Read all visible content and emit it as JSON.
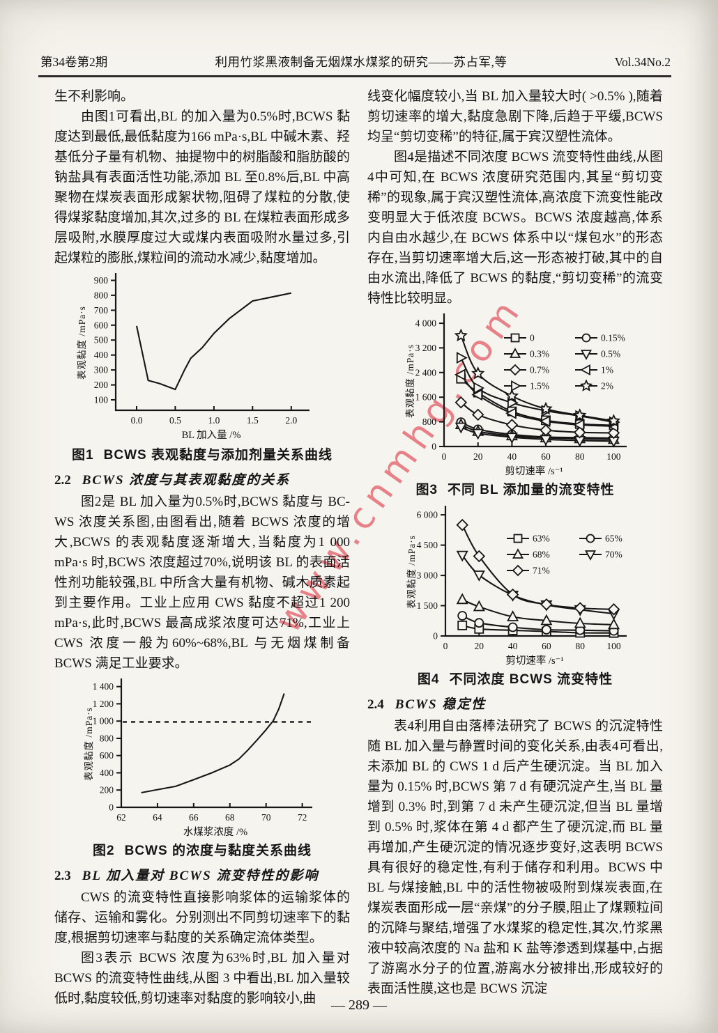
{
  "header": {
    "issue": "第34卷第2期",
    "title": "利用竹浆黑液制备无烟煤水煤浆的研究——苏占军,等",
    "volume": "Vol.34No.2"
  },
  "watermark": {
    "text": "www.cnmhg.com",
    "color": "#e4545f"
  },
  "footer": {
    "page_number": "— 289 —"
  },
  "left_column": {
    "para_continuation": "生不利影响。",
    "para_fig1": "由图1可看出,BL 的加入量为0.5%时,BCWS 黏度达到最低,最低黏度为166 mPa·s,BL 中碱木素、羟基低分子量有机物、抽提物中的树脂酸和脂肪酸的钠盐具有表面活性功能,添加 BL 至0.8%后,BL 中高聚物在煤炭表面形成絮状物,阻碍了煤粒的分散,使得煤浆黏度增加,其次,过多的 BL 在煤粒表面形成多层吸附,水膜厚度过大或煤内表面吸附水量过多,引起煤粒的膨胀,煤粒间的流动水减少,黏度增加。",
    "section_2_2": {
      "num": "2.2",
      "title": "BCWS 浓度与其表观黏度的关系",
      "para": "图2是 BL 加入量为0.5%时,BCWS 黏度与 BC-WS 浓度关系图,由图看出,随着 BCWS 浓度的增大,BCWS 的表观黏度逐渐增大,当黏度为1 000 mPa·s 时,BCWS 浓度超过70%,说明该 BL 的表面活性剂功能较强,BL 中所含大量有机物、碱木质素起到主要作用。工业上应用 CWS 黏度不超过1 200 mPa·s,此时,BCWS 最高成浆浓度可达71%,工业上 CWS 浓度一般为60%~68%,BL 与无烟煤制备 BCWS 满足工业要求。"
    },
    "section_2_3": {
      "num": "2.3",
      "title": "BL 加入量对 BCWS 流变特性的影响",
      "para1": "CWS 的流变特性直接影响浆体的运输浆体的储存、运输和雾化。分别测出不同剪切速率下的黏度,根据剪切速率与黏度的关系确定流体类型。",
      "para2": "图3表示 BCWS 浓度为63%时,BL 加入量对 BCWS 的流变特性曲线,从图 3 中看出,BL 加入量较低时,黏度较低,剪切速率对黏度的影响较小,曲"
    }
  },
  "right_column": {
    "para_continuation": "线变化幅度较小,当 BL 加入量较大时( >0.5% ),随着剪切速率的增大,黏度急剧下降,后趋于平缓,BCWS 均呈“剪切变稀”的特征,属于宾汉塑性流体。",
    "para_fig4": "图4是描述不同浓度 BCWS 流变特性曲线,从图4中可知,在 BCWS 浓度研究范围内,其呈“剪切变稀”的现象,属于宾汉塑性流体,高浓度下流变性能改变明显大于低浓度 BCWS。BCWS 浓度越高,体系内自由水越少,在 BCWS 体系中以“煤包水”的形态存在,当剪切速率增大后,这一形态被打破,其中的自由水流出,降低了 BCWS 的黏度,“剪切变稀”的流变特性比较明显。",
    "section_2_4": {
      "num": "2.4",
      "title": "BCWS 稳定性",
      "para": "表4利用自由落棒法研究了 BCWS 的沉淀特性随 BL 加入量与静置时间的变化关系,由表4可看出,未添加 BL 的 CWS 1 d 后产生硬沉淀。当 BL 加入量为 0.15% 时,BCWS 第 7 d 有硬沉淀产生,当 BL 量增到 0.3% 时,到第 7 d 未产生硬沉淀,但当 BL 量增到 0.5% 时,浆体在第 4 d 都产生了硬沉淀,而 BL 量再增加,产生硬沉淀的情况逐步变好,这表明 BCWS 具有很好的稳定性,有利于储存和利用。BCWS 中 BL 与煤接触,BL 中的活性物被吸附到煤炭表面,在煤炭表面形成一层“亲煤”的分子膜,阻止了煤颗粒间的沉降与聚结,增强了水煤浆的稳定性,其次,竹浆黑液中较高浓度的 Na 盐和 K 盐等渗透到煤基中,占据了游离水分子的位置,游离水分被排出,形成较好的表面活性膜,这也是 BCWS 沉淀"
    }
  },
  "chart_data": [
    {
      "id": "fig1",
      "type": "line",
      "caption_num": "图1",
      "title": "BCWS 表观黏度与添加剂量关系曲线",
      "xlabel": "BL 加入量 /%",
      "ylabel": "表观黏度 /mPa·s",
      "xlim": [
        -0.27,
        2.2
      ],
      "ylim": [
        30,
        935
      ],
      "xticks": [
        0,
        0.5,
        1,
        1.5,
        2
      ],
      "xtick_labels": [
        "0.0",
        "0.5",
        "1.0",
        "1.5",
        "2.0"
      ],
      "yticks": [
        100,
        200,
        300,
        400,
        500,
        600,
        700,
        800,
        900
      ],
      "ytick_labels": [
        "100",
        "200",
        "300",
        "400",
        "500",
        "600",
        "700",
        "800",
        "900"
      ],
      "grid": false,
      "legend_position": "none",
      "series": [
        {
          "name": "BCWS 表观黏度",
          "marker": null,
          "points": [
            [
              0,
              595
            ],
            [
              0.15,
              230
            ],
            [
              0.3,
              208
            ],
            [
              0.5,
              170
            ],
            [
              0.62,
              300
            ],
            [
              0.7,
              378
            ],
            [
              0.85,
              450
            ],
            [
              1.0,
              545
            ],
            [
              1.2,
              645
            ],
            [
              1.5,
              762
            ],
            [
              2.0,
              815
            ]
          ]
        }
      ]
    },
    {
      "id": "fig2",
      "type": "line",
      "caption_num": "图2",
      "title": "BCWS 的浓度与黏度关系曲线",
      "xlabel": "水煤浆浓度 /%",
      "ylabel": "表观黏度 /mPa·s",
      "xlim": [
        62,
        72.4
      ],
      "ylim": [
        0,
        1470
      ],
      "xticks": [
        62,
        64,
        66,
        68,
        70,
        72
      ],
      "xtick_labels": [
        "62",
        "64",
        "66",
        "68",
        "70",
        "72"
      ],
      "yticks": [
        0,
        200,
        400,
        600,
        800,
        1000,
        1200,
        1400
      ],
      "ytick_labels": [
        "0",
        "200",
        "400",
        "600",
        "800",
        "1 000",
        "1 200",
        "1 400"
      ],
      "guide_line_y": 990,
      "grid": false,
      "legend_position": "none",
      "series": [
        {
          "name": "BCWS 黏度",
          "marker": null,
          "points": [
            [
              63.1,
              170
            ],
            [
              64,
              205
            ],
            [
              65,
              243
            ],
            [
              66,
              320
            ],
            [
              67,
              400
            ],
            [
              68,
              490
            ],
            [
              68.5,
              560
            ],
            [
              69,
              665
            ],
            [
              69.5,
              780
            ],
            [
              70,
              900
            ],
            [
              70.4,
              1005
            ],
            [
              70.7,
              1140
            ],
            [
              71,
              1320
            ]
          ]
        }
      ]
    },
    {
      "id": "fig3",
      "type": "line",
      "caption_num": "图3",
      "title": "不同 BL 添加量的流变特性",
      "xlabel": "剪切速率 /s⁻¹",
      "ylabel": "表观黏度 /mPa·s",
      "xlim": [
        0,
        106
      ],
      "ylim": [
        0,
        4250
      ],
      "x": [
        10,
        20,
        40,
        60,
        80,
        100
      ],
      "xticks": [
        0,
        20,
        40,
        60,
        80,
        100
      ],
      "xtick_labels": [
        "0",
        "20",
        "40",
        "60",
        "80",
        "100"
      ],
      "yticks": [
        0,
        800,
        1600,
        2400,
        3200,
        4000
      ],
      "ytick_labels": [
        "0",
        "800",
        "1 600",
        "2 400",
        "3 200",
        "4 000"
      ],
      "grid": false,
      "legend_position": "inside-top-right",
      "series": [
        {
          "name": "0",
          "marker": "square",
          "y": [
            2200,
            1750,
            1140,
            850,
            730,
            690
          ]
        },
        {
          "name": "0.15%",
          "marker": "circle",
          "y": [
            790,
            555,
            390,
            310,
            290,
            270
          ]
        },
        {
          "name": "0.3%",
          "marker": "triangle-up",
          "y": [
            710,
            490,
            345,
            280,
            250,
            230
          ]
        },
        {
          "name": "0.5%",
          "marker": "triangle-down",
          "y": [
            630,
            430,
            300,
            230,
            195,
            175
          ]
        },
        {
          "name": "0.7%",
          "marker": "diamond",
          "y": [
            1430,
            1030,
            700,
            530,
            460,
            440
          ]
        },
        {
          "name": "1%",
          "marker": "triangle-left",
          "y": [
            2330,
            1680,
            1080,
            820,
            700,
            660
          ]
        },
        {
          "name": "1.5%",
          "marker": "triangle-right",
          "y": [
            2880,
            1900,
            1420,
            1160,
            990,
            790
          ]
        },
        {
          "name": "2%",
          "marker": "star",
          "y": [
            3600,
            2370,
            1640,
            1220,
            1010,
            830
          ]
        }
      ]
    },
    {
      "id": "fig4",
      "type": "line",
      "caption_num": "图4",
      "title": "不同浓度 BCWS 流变特性",
      "xlabel": "剪切速率 /s⁻¹",
      "ylabel": "表观黏度 /mPa·s",
      "xlim": [
        0,
        106
      ],
      "ylim": [
        0,
        6350
      ],
      "x": [
        10,
        20,
        40,
        60,
        80,
        100
      ],
      "xticks": [
        0,
        20,
        40,
        60,
        80,
        100
      ],
      "xtick_labels": [
        "0",
        "20",
        "40",
        "60",
        "80",
        "100"
      ],
      "yticks": [
        0,
        1500,
        3000,
        4500,
        6000
      ],
      "ytick_labels": [
        "0",
        "1 500",
        "3 000",
        "4 500",
        "6 000"
      ],
      "grid": false,
      "legend_position": "inside-top-right",
      "series": [
        {
          "name": "63%",
          "marker": "square",
          "y": [
            520,
            350,
            280,
            220,
            155,
            150
          ]
        },
        {
          "name": "65%",
          "marker": "circle",
          "y": [
            1000,
            650,
            430,
            310,
            285,
            255
          ]
        },
        {
          "name": "68%",
          "marker": "triangle-up",
          "y": [
            1800,
            1450,
            950,
            760,
            620,
            560
          ]
        },
        {
          "name": "70%",
          "marker": "triangle-down",
          "y": [
            4000,
            3020,
            2020,
            1540,
            1300,
            1100
          ]
        },
        {
          "name": "71%",
          "marker": "diamond",
          "y": [
            5500,
            3950,
            2050,
            1560,
            1380,
            1320
          ]
        }
      ]
    }
  ]
}
